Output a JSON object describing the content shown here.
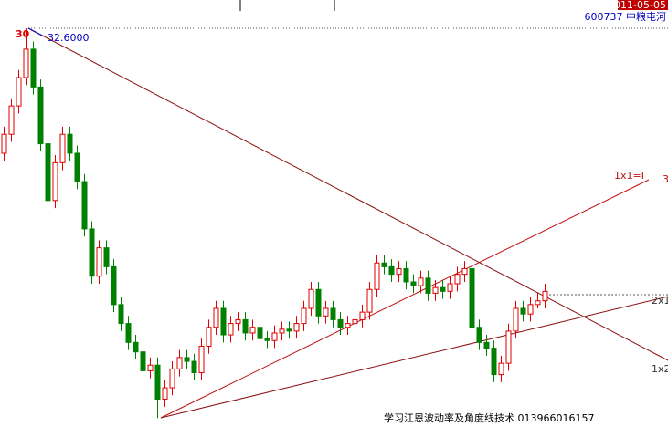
{
  "chart_data": {
    "type": "candlestick",
    "date": "2011-05-05",
    "stock": "600737 中粮屯河",
    "peak_marker": "30",
    "peak_price_label": "32.6000",
    "annotations": [
      "1x1=Γ",
      "3",
      "2x1",
      "1x2"
    ],
    "footer": "学习江恩波动率及角度线技术 013966016157",
    "up_color": "#e00000",
    "down_color": "#008000",
    "ylim": [
      11,
      34.1
    ],
    "open": [
      26.0,
      27.0,
      28.5,
      30.0,
      31.5,
      29.5,
      26.5,
      23.5,
      25.5,
      27.0,
      26.0,
      24.5,
      22.0,
      19.5,
      21.0,
      20.0,
      18.0,
      17.0,
      16.0,
      15.5,
      14.5,
      14.8,
      13.0,
      13.6,
      14.6,
      15.2,
      15.0,
      14.4,
      15.8,
      16.8,
      17.8,
      16.4,
      17.0,
      17.2,
      16.5,
      16.8,
      16.2,
      16.1,
      16.5,
      16.7,
      16.6,
      17.0,
      17.8,
      18.8,
      17.4,
      17.8,
      17.2,
      16.8,
      17.0,
      17.2,
      17.6,
      18.8,
      20.2,
      20.0,
      19.6,
      19.9,
      19.2,
      19.0,
      19.4,
      18.6,
      18.9,
      18.7,
      19.1,
      19.6,
      19.9,
      16.8,
      16.0,
      15.7,
      14.3,
      14.9,
      16.6,
      17.8,
      17.5,
      18.0,
      18.2
    ],
    "high": [
      27.4,
      28.9,
      30.4,
      32.6,
      31.9,
      29.9,
      26.9,
      25.9,
      27.4,
      27.4,
      26.4,
      24.9,
      22.4,
      21.4,
      21.4,
      20.4,
      18.4,
      17.4,
      16.4,
      15.9,
      15.2,
      15.2,
      14.0,
      15.0,
      15.6,
      15.6,
      15.4,
      16.2,
      17.2,
      18.2,
      18.2,
      17.4,
      17.6,
      17.6,
      17.2,
      17.2,
      16.6,
      16.9,
      17.1,
      17.1,
      17.4,
      18.2,
      19.2,
      19.2,
      18.2,
      18.2,
      17.6,
      17.4,
      17.6,
      18.0,
      19.2,
      20.6,
      20.6,
      20.4,
      20.3,
      20.3,
      19.6,
      19.8,
      19.8,
      19.3,
      19.3,
      19.5,
      20.0,
      20.3,
      20.3,
      17.2,
      16.4,
      16.1,
      15.3,
      17.0,
      18.2,
      18.2,
      18.4,
      18.6,
      19.1
    ],
    "low": [
      25.6,
      26.6,
      28.1,
      29.6,
      29.1,
      26.1,
      23.1,
      23.1,
      25.1,
      25.6,
      24.1,
      21.6,
      19.1,
      19.1,
      19.6,
      17.6,
      16.6,
      15.6,
      15.1,
      14.1,
      14.1,
      12.0,
      12.6,
      13.2,
      14.2,
      14.6,
      14.0,
      14.0,
      15.4,
      16.4,
      16.0,
      16.0,
      16.6,
      16.1,
      16.1,
      15.8,
      15.7,
      15.7,
      16.1,
      16.2,
      16.2,
      16.6,
      17.4,
      17.0,
      17.0,
      16.8,
      16.4,
      16.4,
      16.6,
      16.8,
      17.2,
      18.4,
      19.6,
      19.2,
      19.2,
      18.8,
      18.6,
      18.6,
      18.2,
      18.2,
      18.3,
      18.3,
      18.7,
      19.2,
      16.4,
      15.6,
      15.3,
      13.9,
      13.9,
      14.5,
      16.2,
      17.1,
      17.1,
      17.8,
      17.8
    ],
    "close": [
      27.0,
      28.5,
      30.0,
      31.5,
      29.5,
      26.5,
      23.5,
      25.5,
      27.0,
      26.0,
      24.5,
      22.0,
      19.5,
      21.0,
      20.0,
      18.0,
      17.0,
      16.0,
      15.5,
      14.5,
      14.8,
      13.0,
      13.6,
      14.6,
      15.2,
      15.0,
      14.4,
      15.8,
      16.8,
      17.8,
      16.4,
      17.0,
      17.2,
      16.5,
      16.8,
      16.2,
      16.1,
      16.5,
      16.7,
      16.6,
      17.0,
      17.8,
      18.8,
      17.4,
      17.8,
      17.2,
      16.8,
      17.0,
      17.2,
      17.6,
      18.8,
      20.2,
      20.0,
      19.6,
      19.9,
      19.2,
      19.0,
      19.4,
      18.6,
      18.9,
      18.7,
      19.1,
      19.6,
      19.9,
      16.8,
      16.0,
      15.7,
      14.3,
      14.9,
      16.6,
      17.8,
      17.5,
      18.0,
      18.2,
      18.7
    ]
  }
}
